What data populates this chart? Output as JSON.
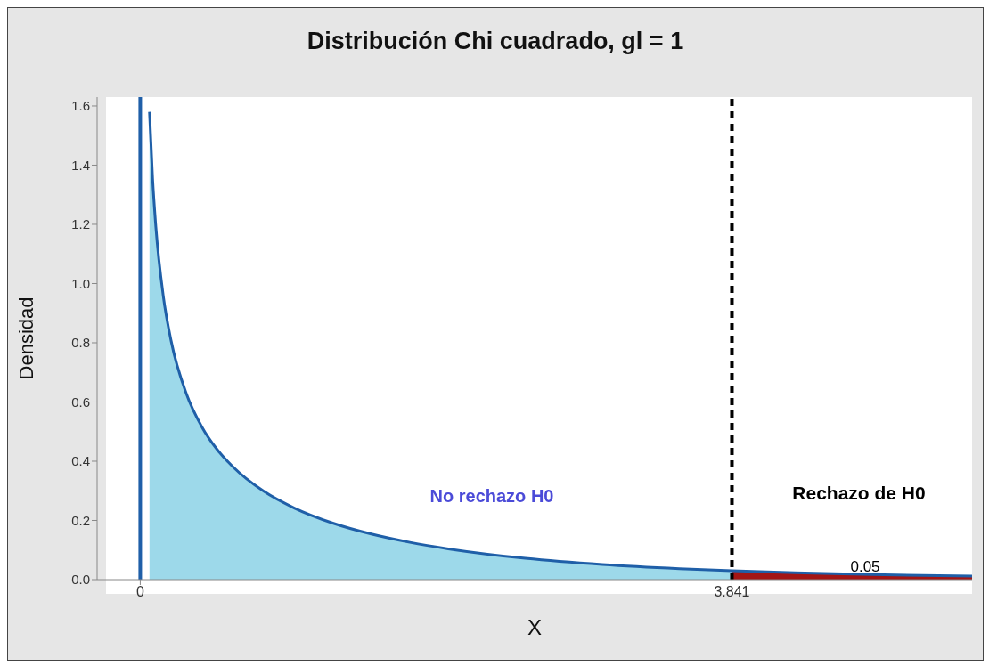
{
  "chart_data": {
    "type": "area",
    "title": "Distribución Chi cuadrado, gl =  1",
    "xlabel": "X",
    "ylabel": "Densidad",
    "x": [
      0.06,
      0.08,
      0.1,
      0.15,
      0.2,
      0.3,
      0.4,
      0.5,
      0.6,
      0.8,
      1.0,
      1.25,
      1.5,
      1.75,
      2.0,
      2.5,
      3.0,
      3.5,
      3.841,
      4.25,
      4.75,
      5.4
    ],
    "series": [
      {
        "color": "#9dd9ea",
        "values": [
          1.58,
          1.355,
          1.2,
          0.956,
          0.807,
          0.627,
          0.516,
          0.439,
          0.382,
          0.299,
          0.242,
          0.191,
          0.154,
          0.126,
          0.104,
          0.072,
          0.051,
          0.037,
          0.03,
          null,
          null,
          null
        ]
      },
      {
        "color": "#a31515",
        "values": [
          null,
          null,
          null,
          null,
          null,
          null,
          null,
          null,
          null,
          null,
          null,
          null,
          null,
          null,
          null,
          null,
          null,
          null,
          0.03,
          0.023,
          0.017,
          0.012
        ]
      },
      {
        "type": "line",
        "color": "#1f5fa8",
        "values": [
          1.58,
          1.355,
          1.2,
          0.956,
          0.807,
          0.627,
          0.516,
          0.439,
          0.382,
          0.299,
          0.242,
          0.191,
          0.154,
          0.126,
          0.104,
          0.072,
          0.051,
          0.037,
          0.03,
          0.023,
          0.017,
          0.012
        ]
      }
    ],
    "xlim": [
      -0.28,
      5.4
    ],
    "xticks": [
      0,
      3.841
    ],
    "ylim": [
      0,
      1.63
    ],
    "yticks": [
      {
        "value": 0,
        "label": "0.0"
      },
      0.2,
      0.4,
      0.6,
      0.8,
      {
        "value": 1,
        "label": "1.0"
      },
      1.2,
      1.4,
      1.6
    ],
    "ref_lines": [
      {
        "axis": "x",
        "value": 0,
        "color": "#1f5fa8",
        "line_style": "solid"
      },
      {
        "axis": "x",
        "value": 3.841,
        "color": "#000000",
        "line_style": "dashed"
      }
    ],
    "annotations": [
      "No rechazo H0",
      "Rechazo de H0",
      "0.05"
    ]
  }
}
